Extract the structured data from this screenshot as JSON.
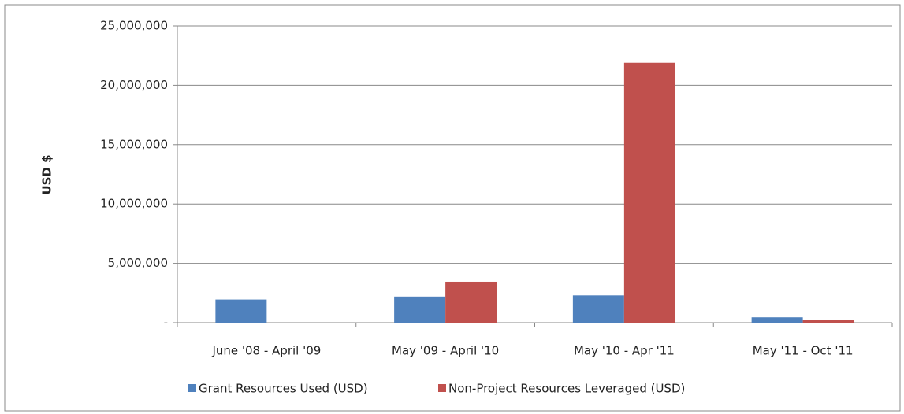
{
  "chart_data": {
    "type": "bar",
    "y_axis_label": "USD $",
    "categories": [
      "June '08 - April '09",
      "May '09 - April '10",
      "May '10 - Apr '11",
      "May '11 - Oct '11"
    ],
    "series": [
      {
        "name": "Grant Resources Used (USD)",
        "color": "#4f81bd",
        "values": [
          1950000,
          2200000,
          2300000,
          450000
        ]
      },
      {
        "name": "Non-Project Resources Leveraged (USD)",
        "color": "#c0504d",
        "values": [
          0,
          3450000,
          21900000,
          200000
        ]
      }
    ],
    "ylim": [
      0,
      25000000
    ],
    "yticks": [
      {
        "value": 0,
        "label": "-"
      },
      {
        "value": 5000000,
        "label": "5,000,000"
      },
      {
        "value": 10000000,
        "label": "10,000,000"
      },
      {
        "value": 15000000,
        "label": "15,000,000"
      },
      {
        "value": 20000000,
        "label": "20,000,000"
      },
      {
        "value": 25000000,
        "label": "25,000,000"
      }
    ],
    "grid": true,
    "legend": "bottom"
  }
}
